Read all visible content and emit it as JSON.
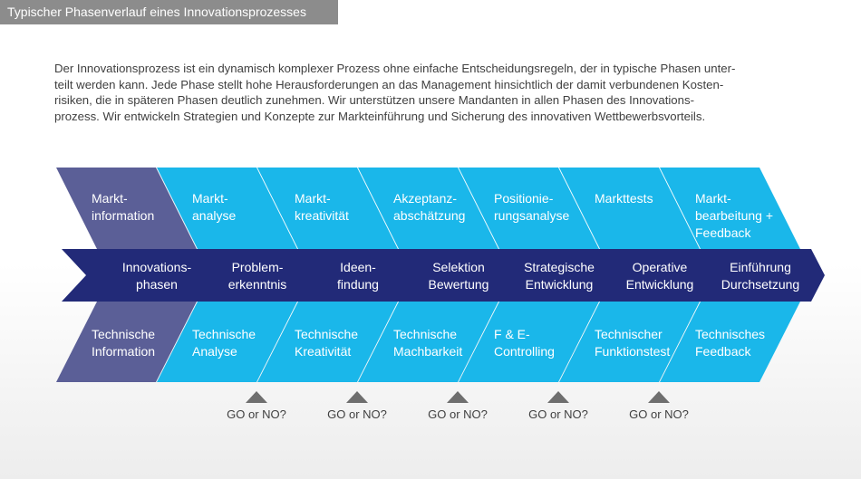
{
  "header": {
    "title": "Typischer Phasenverlauf eines Innovationsprozesses"
  },
  "intro": {
    "lines": [
      "Der Innovationsprozess ist ein dynamisch komplexer Prozess ohne einfache Entscheidungsregeln, der in typische Phasen unter-",
      "teilt werden kann. Jede Phase stellt hohe Herausforderungen an das Management hinsichtlich der damit verbundenen Kosten-",
      "risiken, die in späteren Phasen deutlich zunehmen. Wir unterstützen unsere Mandanten in allen Phasen des Innovations-",
      "prozess. Wir entwickeln Strategien und Konzepte zur Markteinführung und Sicherung des innovativen Wettbewerbsvorteils."
    ]
  },
  "diagram": {
    "colors": {
      "first_column": "#5b5f97",
      "phases": "#1ab7ea",
      "arrow": "#222a78",
      "text": "#ffffff"
    },
    "top_row": [
      {
        "lines": [
          "Markt-",
          "information"
        ]
      },
      {
        "lines": [
          "Markt-",
          "analyse"
        ]
      },
      {
        "lines": [
          "Markt-",
          "kreativität"
        ]
      },
      {
        "lines": [
          "Akzeptanz-",
          "abschätzung"
        ]
      },
      {
        "lines": [
          "Positionie-",
          "rungsanalyse"
        ]
      },
      {
        "lines": [
          "Markttests"
        ]
      },
      {
        "lines": [
          "Markt-",
          "bearbeitung +",
          "Feedback"
        ]
      }
    ],
    "middle_row": [
      {
        "lines": [
          "Innovations-",
          "phasen"
        ]
      },
      {
        "lines": [
          "Problem-",
          "erkenntnis"
        ]
      },
      {
        "lines": [
          "Ideen-",
          "findung"
        ]
      },
      {
        "lines": [
          "Selektion",
          "Bewertung"
        ]
      },
      {
        "lines": [
          "Strategische",
          "Entwicklung"
        ]
      },
      {
        "lines": [
          "Operative",
          "Entwicklung"
        ]
      },
      {
        "lines": [
          "Einführung",
          "Durchsetzung"
        ]
      }
    ],
    "bottom_row": [
      {
        "lines": [
          "Technische",
          "Information"
        ]
      },
      {
        "lines": [
          "Technische",
          "Analyse"
        ]
      },
      {
        "lines": [
          "Technische",
          "Kreativität"
        ]
      },
      {
        "lines": [
          "Technische",
          "Machbarkeit"
        ]
      },
      {
        "lines": [
          "F & E-",
          "Controlling"
        ]
      },
      {
        "lines": [
          "Technischer",
          "Funktionstest"
        ]
      },
      {
        "lines": [
          "Technisches",
          "Feedback"
        ]
      }
    ],
    "gates": [
      {
        "label": "GO or NO?"
      },
      {
        "label": "GO or NO?"
      },
      {
        "label": "GO or NO?"
      },
      {
        "label": "GO or NO?"
      },
      {
        "label": "GO or NO?"
      }
    ]
  }
}
